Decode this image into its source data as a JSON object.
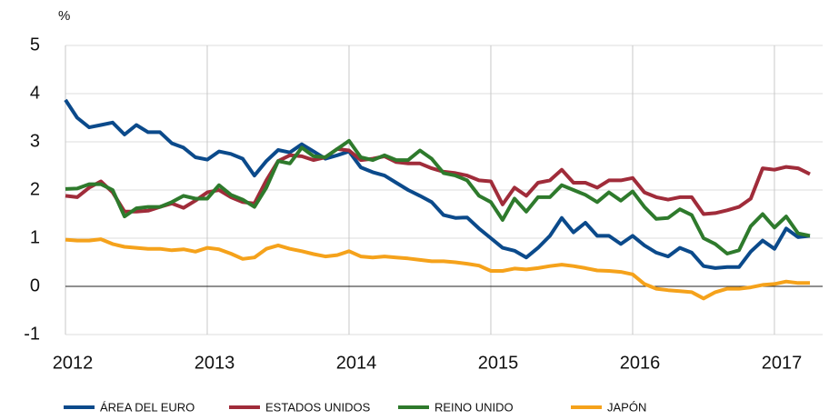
{
  "chart_data": {
    "type": "line",
    "unit": "%",
    "x": [
      2012,
      2012.083,
      2012.167,
      2012.25,
      2012.333,
      2012.417,
      2012.5,
      2012.583,
      2012.667,
      2012.75,
      2012.833,
      2012.917,
      2013,
      2013.083,
      2013.167,
      2013.25,
      2013.333,
      2013.417,
      2013.5,
      2013.583,
      2013.667,
      2013.75,
      2013.833,
      2013.917,
      2014,
      2014.083,
      2014.167,
      2014.25,
      2014.333,
      2014.417,
      2014.5,
      2014.583,
      2014.667,
      2014.75,
      2014.833,
      2014.917,
      2015,
      2015.083,
      2015.167,
      2015.25,
      2015.333,
      2015.417,
      2015.5,
      2015.583,
      2015.667,
      2015.75,
      2015.833,
      2015.917,
      2016,
      2016.083,
      2016.167,
      2016.25,
      2016.333,
      2016.417,
      2016.5,
      2016.583,
      2016.667,
      2016.75,
      2016.833,
      2016.917,
      2017,
      2017.083,
      2017.167,
      2017.25
    ],
    "series": [
      {
        "name": "ÁREA DEL EURO",
        "color": "#0b4a8b",
        "values": [
          3.87,
          3.5,
          3.3,
          3.35,
          3.4,
          3.15,
          3.35,
          3.2,
          3.2,
          2.97,
          2.88,
          2.68,
          2.63,
          2.8,
          2.75,
          2.65,
          2.3,
          2.6,
          2.83,
          2.78,
          2.95,
          2.8,
          2.65,
          2.72,
          2.8,
          2.47,
          2.37,
          2.3,
          2.15,
          2.0,
          1.88,
          1.75,
          1.48,
          1.42,
          1.43,
          1.2,
          1.0,
          0.8,
          0.74,
          0.6,
          0.8,
          1.05,
          1.42,
          1.12,
          1.32,
          1.05,
          1.05,
          0.88,
          1.05,
          0.85,
          0.7,
          0.62,
          0.8,
          0.7,
          0.42,
          0.38,
          0.4,
          0.4,
          0.72,
          0.95,
          0.78,
          1.2,
          1.02,
          1.05
        ]
      },
      {
        "name": "ESTADOS UNIDOS",
        "color": "#a02c3a",
        "values": [
          1.88,
          1.85,
          2.05,
          2.18,
          1.95,
          1.55,
          1.55,
          1.57,
          1.65,
          1.72,
          1.63,
          1.78,
          1.95,
          2.0,
          1.85,
          1.75,
          1.72,
          2.2,
          2.6,
          2.72,
          2.7,
          2.62,
          2.68,
          2.85,
          2.82,
          2.62,
          2.65,
          2.7,
          2.58,
          2.55,
          2.55,
          2.45,
          2.38,
          2.35,
          2.3,
          2.2,
          2.18,
          1.7,
          2.05,
          1.88,
          2.15,
          2.2,
          2.42,
          2.15,
          2.15,
          2.05,
          2.2,
          2.2,
          2.25,
          1.95,
          1.85,
          1.8,
          1.85,
          1.85,
          1.5,
          1.52,
          1.58,
          1.65,
          1.82,
          2.45,
          2.42,
          2.48,
          2.45,
          2.33
        ]
      },
      {
        "name": "REINO UNIDO",
        "color": "#2e7a2c",
        "values": [
          2.02,
          2.03,
          2.12,
          2.12,
          2.0,
          1.45,
          1.62,
          1.65,
          1.65,
          1.75,
          1.88,
          1.82,
          1.82,
          2.1,
          1.9,
          1.8,
          1.65,
          2.05,
          2.6,
          2.55,
          2.88,
          2.7,
          2.68,
          2.85,
          3.02,
          2.68,
          2.62,
          2.72,
          2.62,
          2.62,
          2.82,
          2.65,
          2.35,
          2.3,
          2.2,
          1.88,
          1.75,
          1.38,
          1.82,
          1.55,
          1.85,
          1.85,
          2.1,
          2.0,
          1.9,
          1.75,
          1.95,
          1.78,
          1.97,
          1.65,
          1.4,
          1.42,
          1.6,
          1.48,
          1.0,
          0.88,
          0.68,
          0.75,
          1.25,
          1.5,
          1.22,
          1.45,
          1.1,
          1.05
        ]
      },
      {
        "name": "JAPÓN",
        "color": "#f5a21b",
        "values": [
          0.97,
          0.95,
          0.95,
          0.98,
          0.88,
          0.82,
          0.8,
          0.78,
          0.78,
          0.75,
          0.77,
          0.72,
          0.8,
          0.77,
          0.68,
          0.57,
          0.6,
          0.78,
          0.85,
          0.78,
          0.73,
          0.67,
          0.62,
          0.65,
          0.73,
          0.62,
          0.6,
          0.62,
          0.6,
          0.58,
          0.55,
          0.52,
          0.52,
          0.5,
          0.47,
          0.43,
          0.32,
          0.32,
          0.37,
          0.35,
          0.38,
          0.42,
          0.45,
          0.42,
          0.38,
          0.33,
          0.32,
          0.3,
          0.25,
          0.05,
          -0.05,
          -0.08,
          -0.1,
          -0.12,
          -0.25,
          -0.12,
          -0.05,
          -0.05,
          -0.02,
          0.03,
          0.05,
          0.1,
          0.07,
          0.07
        ]
      }
    ],
    "xlim": [
      2012,
      2017.34
    ],
    "xticks": [
      2012,
      2013,
      2014,
      2015,
      2016,
      2017
    ],
    "ylim": [
      -1,
      5
    ],
    "yticks": [
      -1,
      0,
      1,
      2,
      3,
      4,
      5
    ],
    "grid": true,
    "legend": "bottom"
  }
}
